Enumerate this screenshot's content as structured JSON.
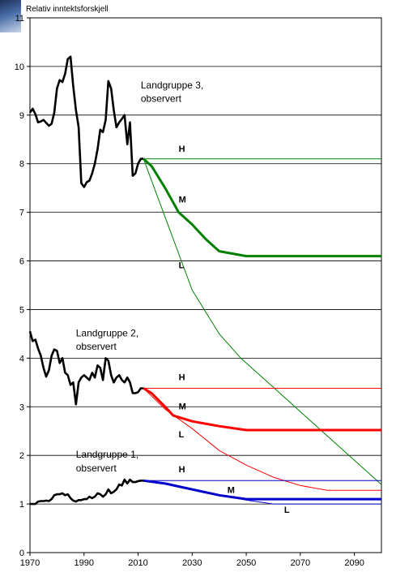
{
  "chart_data": {
    "type": "line",
    "ylabel": "Relativ inntektsforskjell",
    "xlim": [
      1970,
      2100
    ],
    "ylim": [
      0,
      11
    ],
    "x_ticks": [
      1970,
      1990,
      2010,
      2030,
      2050,
      2070,
      2090
    ],
    "y_ticks": [
      0,
      1,
      2,
      3,
      4,
      5,
      6,
      7,
      8,
      9,
      10,
      11
    ],
    "grid": "horizontal",
    "colors": {
      "group1": "#0000cc",
      "group2": "#ff0000",
      "group3": "#008000",
      "observed": "#000000"
    },
    "annotations": [
      {
        "text": "Landgruppe 3,",
        "x": 2011,
        "y": 9.55
      },
      {
        "text": "observert",
        "x": 2011,
        "y": 9.27
      },
      {
        "text": "Landgruppe 2,",
        "x": 1987,
        "y": 4.45
      },
      {
        "text": "observert",
        "x": 1987,
        "y": 4.17
      },
      {
        "text": "Landgruppe 1,",
        "x": 1987,
        "y": 1.95
      },
      {
        "text": "observert",
        "x": 1987,
        "y": 1.67
      },
      {
        "text": "H",
        "x": 2025,
        "y": 8.25
      },
      {
        "text": "M",
        "x": 2025,
        "y": 7.2
      },
      {
        "text": "L",
        "x": 2025,
        "y": 5.85
      },
      {
        "text": "H",
        "x": 2025,
        "y": 3.55
      },
      {
        "text": "M",
        "x": 2025,
        "y": 2.95
      },
      {
        "text": "L",
        "x": 2025,
        "y": 2.37
      },
      {
        "text": "H",
        "x": 2025,
        "y": 1.65
      },
      {
        "text": "M",
        "x": 2043,
        "y": 1.23
      },
      {
        "text": "L",
        "x": 2064,
        "y": 0.82
      }
    ],
    "series": [
      {
        "group": 3,
        "kind": "observed",
        "x": [
          1970,
          1971,
          1972,
          1973,
          1974,
          1975,
          1976,
          1977,
          1978,
          1979,
          1980,
          1981,
          1982,
          1983,
          1984,
          1985,
          1986,
          1987,
          1988,
          1989,
          1990,
          1991,
          1992,
          1993,
          1994,
          1995,
          1996,
          1997,
          1998,
          1999,
          2000,
          2001,
          2002,
          2003,
          2004,
          2005,
          2006,
          2007,
          2008,
          2009,
          2010,
          2011,
          2012
        ],
        "values": [
          9.05,
          9.13,
          9.02,
          8.85,
          8.87,
          8.9,
          8.84,
          8.78,
          8.82,
          9.05,
          9.55,
          9.72,
          9.68,
          9.85,
          10.15,
          10.2,
          9.6,
          9.1,
          8.75,
          7.6,
          7.52,
          7.62,
          7.65,
          7.8,
          8.0,
          8.3,
          8.7,
          8.65,
          8.9,
          9.7,
          9.55,
          9.1,
          8.75,
          8.85,
          8.92,
          9.0,
          8.4,
          8.85,
          7.75,
          7.8,
          8.0,
          8.1,
          8.1
        ]
      },
      {
        "group": 3,
        "kind": "H",
        "x": [
          2012,
          2015,
          2100
        ],
        "values": [
          8.1,
          8.1,
          8.1
        ]
      },
      {
        "group": 3,
        "kind": "M",
        "x": [
          2012,
          2015,
          2020,
          2025,
          2030,
          2035,
          2040,
          2045,
          2050,
          2100
        ],
        "values": [
          8.1,
          7.95,
          7.5,
          7.0,
          6.75,
          6.45,
          6.2,
          6.15,
          6.1,
          6.1
        ]
      },
      {
        "group": 3,
        "kind": "L",
        "x": [
          2012,
          2020,
          2030,
          2040,
          2048,
          2060,
          2070,
          2080,
          2090,
          2100
        ],
        "values": [
          8.1,
          6.9,
          5.4,
          4.5,
          4.0,
          3.4,
          2.9,
          2.4,
          1.9,
          1.4
        ]
      },
      {
        "group": 2,
        "kind": "observed",
        "x": [
          1970,
          1971,
          1972,
          1973,
          1974,
          1975,
          1976,
          1977,
          1978,
          1979,
          1980,
          1981,
          1982,
          1983,
          1984,
          1985,
          1986,
          1987,
          1988,
          1989,
          1990,
          1991,
          1992,
          1993,
          1994,
          1995,
          1996,
          1997,
          1998,
          1999,
          2000,
          2001,
          2002,
          2003,
          2004,
          2005,
          2006,
          2007,
          2008,
          2009,
          2010,
          2011,
          2012
        ],
        "values": [
          4.55,
          4.35,
          4.38,
          4.2,
          4.05,
          3.8,
          3.62,
          3.75,
          4.05,
          4.18,
          4.15,
          3.9,
          4.0,
          3.7,
          3.65,
          3.45,
          3.5,
          3.05,
          3.5,
          3.6,
          3.65,
          3.6,
          3.55,
          3.7,
          3.6,
          3.85,
          3.8,
          3.55,
          4.0,
          3.95,
          3.65,
          3.5,
          3.6,
          3.65,
          3.55,
          3.5,
          3.6,
          3.5,
          3.28,
          3.28,
          3.3,
          3.38,
          3.38
        ]
      },
      {
        "group": 2,
        "kind": "H",
        "x": [
          2012,
          2100
        ],
        "values": [
          3.38,
          3.38
        ]
      },
      {
        "group": 2,
        "kind": "M",
        "x": [
          2012,
          2015,
          2020,
          2023,
          2030,
          2040,
          2050,
          2100
        ],
        "values": [
          3.38,
          3.28,
          3.0,
          2.82,
          2.7,
          2.6,
          2.52,
          2.52
        ]
      },
      {
        "group": 2,
        "kind": "L",
        "x": [
          2012,
          2020,
          2030,
          2040,
          2050,
          2060,
          2070,
          2080,
          2100
        ],
        "values": [
          3.38,
          2.95,
          2.55,
          2.1,
          1.8,
          1.55,
          1.38,
          1.28,
          1.28
        ]
      },
      {
        "group": 1,
        "kind": "observed",
        "x": [
          1970,
          1971,
          1972,
          1973,
          1974,
          1975,
          1976,
          1977,
          1978,
          1979,
          1980,
          1981,
          1982,
          1983,
          1984,
          1985,
          1986,
          1987,
          1988,
          1989,
          1990,
          1991,
          1992,
          1993,
          1994,
          1995,
          1996,
          1997,
          1998,
          1999,
          2000,
          2001,
          2002,
          2003,
          2004,
          2005,
          2006,
          2007,
          2008,
          2009,
          2010,
          2011,
          2012
        ],
        "values": [
          1.0,
          1.0,
          1.0,
          1.05,
          1.06,
          1.06,
          1.07,
          1.06,
          1.1,
          1.18,
          1.2,
          1.2,
          1.22,
          1.18,
          1.2,
          1.12,
          1.07,
          1.05,
          1.08,
          1.08,
          1.1,
          1.1,
          1.15,
          1.12,
          1.15,
          1.22,
          1.2,
          1.15,
          1.2,
          1.3,
          1.22,
          1.25,
          1.3,
          1.4,
          1.38,
          1.5,
          1.42,
          1.5,
          1.45,
          1.45,
          1.47,
          1.48,
          1.48
        ]
      },
      {
        "group": 1,
        "kind": "H",
        "x": [
          2012,
          2100
        ],
        "values": [
          1.48,
          1.48
        ]
      },
      {
        "group": 1,
        "kind": "M",
        "x": [
          2012,
          2020,
          2030,
          2040,
          2050,
          2100
        ],
        "values": [
          1.48,
          1.42,
          1.3,
          1.18,
          1.1,
          1.1
        ]
      },
      {
        "group": 1,
        "kind": "L",
        "x": [
          2012,
          2020,
          2030,
          2040,
          2050,
          2060,
          2100
        ],
        "values": [
          1.48,
          1.42,
          1.3,
          1.18,
          1.08,
          1.0,
          1.0
        ]
      }
    ]
  }
}
